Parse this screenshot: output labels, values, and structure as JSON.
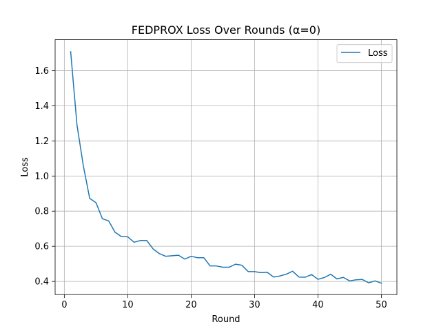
{
  "chart_data": {
    "type": "line",
    "title": "FEDPROX Loss Over Rounds (α=0)",
    "xlabel": "Round",
    "ylabel": "Loss",
    "xlim": [
      -1.45,
      52.45
    ],
    "ylim": [
      0.325,
      1.776
    ],
    "xticks": [
      0,
      10,
      20,
      30,
      40,
      50
    ],
    "yticks": [
      0.4,
      0.6,
      0.8,
      1.0,
      1.2,
      1.4,
      1.6
    ],
    "ytick_labels": [
      "0.4",
      "0.6",
      "0.8",
      "1.0",
      "1.2",
      "1.4",
      "1.6"
    ],
    "grid": true,
    "legend_position": "top-right",
    "series_color": "#1f77b4",
    "series": [
      {
        "name": "Loss",
        "x": [
          1,
          2,
          3,
          4,
          5,
          6,
          7,
          8,
          9,
          10,
          11,
          12,
          13,
          14,
          15,
          16,
          17,
          18,
          19,
          20,
          21,
          22,
          23,
          24,
          25,
          26,
          27,
          28,
          29,
          30,
          31,
          32,
          33,
          34,
          35,
          36,
          37,
          38,
          39,
          40,
          41,
          42,
          43,
          44,
          45,
          46,
          47,
          48,
          49,
          50
        ],
        "values": [
          1.708,
          1.29,
          1.058,
          0.873,
          0.848,
          0.757,
          0.744,
          0.68,
          0.655,
          0.654,
          0.623,
          0.633,
          0.633,
          0.585,
          0.558,
          0.543,
          0.546,
          0.549,
          0.527,
          0.543,
          0.535,
          0.535,
          0.488,
          0.488,
          0.481,
          0.481,
          0.498,
          0.492,
          0.456,
          0.456,
          0.45,
          0.452,
          0.425,
          0.431,
          0.441,
          0.458,
          0.425,
          0.424,
          0.439,
          0.412,
          0.422,
          0.441,
          0.414,
          0.423,
          0.403,
          0.409,
          0.411,
          0.392,
          0.403,
          0.39
        ]
      }
    ]
  }
}
